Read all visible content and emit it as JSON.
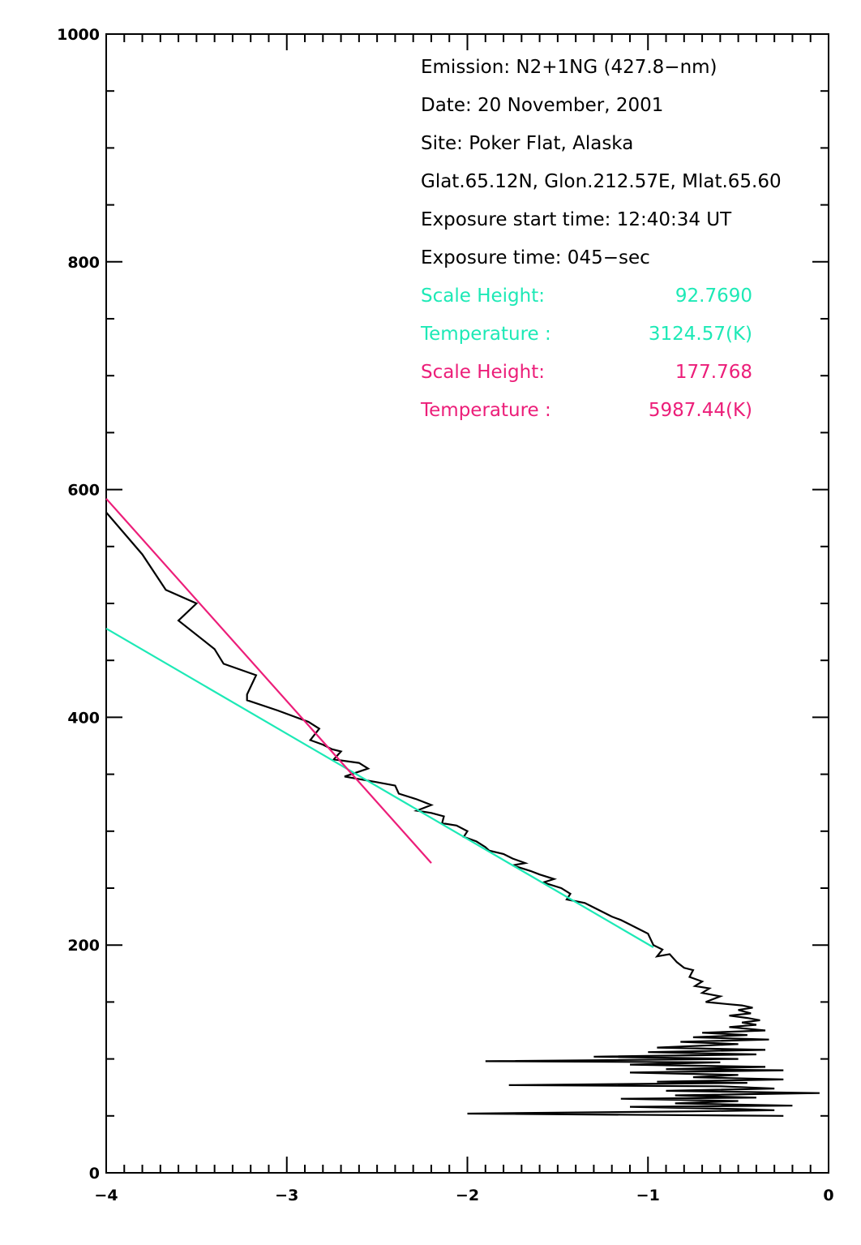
{
  "chart_data": {
    "type": "line",
    "xlim": [
      -4,
      0
    ],
    "ylim": [
      0,
      1000
    ],
    "x_ticks": [
      -4,
      -3,
      -2,
      -1,
      0
    ],
    "x_tick_labels": [
      "−4",
      "−3",
      "−2",
      "−1",
      "0"
    ],
    "y_ticks": [
      0,
      200,
      400,
      600,
      800,
      1000
    ],
    "y_tick_labels": [
      "0",
      "200",
      "400",
      "600",
      "800",
      "1000"
    ],
    "grid": false,
    "annotations": [
      {
        "text": "Emission: N2+1NG (427.8−nm)",
        "color": "#000000"
      },
      {
        "text": "Date: 20 November, 2001",
        "color": "#000000"
      },
      {
        "text": "Site: Poker Flat, Alaska",
        "color": "#000000"
      },
      {
        "text": "Glat.65.12N, Glon.212.57E, Mlat.65.60",
        "color": "#000000"
      },
      {
        "text": "Exposure start time: 12:40:34 UT",
        "color": "#000000"
      },
      {
        "text": "Exposure time: 045−sec",
        "color": "#000000"
      },
      {
        "label": "Scale Height:",
        "value": "92.7690",
        "color": "#1de9b6"
      },
      {
        "label": "Temperature :",
        "value": "3124.57(K)",
        "color": "#1de9b6"
      },
      {
        "label": "Scale Height:",
        "value": "177.768",
        "color": "#ec1e79"
      },
      {
        "label": "Temperature :",
        "value": "5987.44(K)",
        "color": "#ec1e79"
      }
    ],
    "series": [
      {
        "color": "#000000",
        "points": [
          [
            -4.0,
            580
          ],
          [
            -3.8,
            543
          ],
          [
            -3.67,
            512
          ],
          [
            -3.5,
            500
          ],
          [
            -3.6,
            485
          ],
          [
            -3.4,
            460
          ],
          [
            -3.35,
            447
          ],
          [
            -3.17,
            437
          ],
          [
            -3.22,
            420
          ],
          [
            -3.22,
            415
          ],
          [
            -3.05,
            406
          ],
          [
            -2.88,
            396
          ],
          [
            -2.82,
            390
          ],
          [
            -2.87,
            380
          ],
          [
            -2.8,
            376
          ],
          [
            -2.75,
            372
          ],
          [
            -2.7,
            370
          ],
          [
            -2.74,
            363
          ],
          [
            -2.6,
            360
          ],
          [
            -2.55,
            355
          ],
          [
            -2.68,
            348
          ],
          [
            -2.5,
            343
          ],
          [
            -2.4,
            340
          ],
          [
            -2.38,
            333
          ],
          [
            -2.28,
            328
          ],
          [
            -2.2,
            323
          ],
          [
            -2.28,
            318
          ],
          [
            -2.2,
            316
          ],
          [
            -2.13,
            313
          ],
          [
            -2.14,
            307
          ],
          [
            -2.06,
            305
          ],
          [
            -2.0,
            300
          ],
          [
            -2.02,
            295
          ],
          [
            -1.95,
            291
          ],
          [
            -1.9,
            286
          ],
          [
            -1.88,
            283
          ],
          [
            -1.8,
            280
          ],
          [
            -1.75,
            276
          ],
          [
            -1.68,
            272
          ],
          [
            -1.75,
            270
          ],
          [
            -1.65,
            265
          ],
          [
            -1.6,
            262
          ],
          [
            -1.52,
            258
          ],
          [
            -1.58,
            255
          ],
          [
            -1.48,
            250
          ],
          [
            -1.43,
            245
          ],
          [
            -1.45,
            240
          ],
          [
            -1.35,
            237
          ],
          [
            -1.3,
            233
          ],
          [
            -1.25,
            229
          ],
          [
            -1.2,
            225
          ],
          [
            -1.15,
            222
          ],
          [
            -1.1,
            218
          ],
          [
            -1.05,
            214
          ],
          [
            -1.0,
            210
          ],
          [
            -0.97,
            200
          ],
          [
            -0.92,
            196
          ],
          [
            -0.95,
            190
          ],
          [
            -0.88,
            192
          ],
          [
            -0.84,
            185
          ],
          [
            -0.8,
            180
          ],
          [
            -0.75,
            178
          ],
          [
            -0.77,
            172
          ],
          [
            -0.7,
            168
          ],
          [
            -0.74,
            164
          ],
          [
            -0.66,
            162
          ],
          [
            -0.7,
            158
          ],
          [
            -0.6,
            155
          ],
          [
            -0.68,
            150
          ],
          [
            -0.55,
            148
          ],
          [
            -0.48,
            147
          ],
          [
            -0.42,
            145
          ],
          [
            -0.5,
            143
          ],
          [
            -0.43,
            140
          ],
          [
            -0.55,
            138
          ],
          [
            -0.45,
            136
          ],
          [
            -0.38,
            134
          ],
          [
            -0.48,
            132
          ],
          [
            -0.4,
            130
          ],
          [
            -0.55,
            128
          ],
          [
            -0.35,
            125
          ],
          [
            -0.7,
            123
          ],
          [
            -0.45,
            121
          ],
          [
            -0.75,
            119
          ],
          [
            -0.33,
            117
          ],
          [
            -0.82,
            115
          ],
          [
            -0.5,
            113
          ],
          [
            -0.95,
            110
          ],
          [
            -0.35,
            108
          ],
          [
            -1.0,
            106
          ],
          [
            -0.4,
            104
          ],
          [
            -1.3,
            102
          ],
          [
            -0.5,
            100
          ],
          [
            -1.9,
            98
          ],
          [
            -0.6,
            97
          ],
          [
            -1.1,
            95
          ],
          [
            -0.35,
            93
          ],
          [
            -0.9,
            91
          ],
          [
            -0.25,
            90
          ],
          [
            -1.1,
            88
          ],
          [
            -0.5,
            86
          ],
          [
            -0.75,
            84
          ],
          [
            -0.25,
            82
          ],
          [
            -0.95,
            80
          ],
          [
            -0.45,
            79
          ],
          [
            -1.77,
            77
          ],
          [
            -0.6,
            76
          ],
          [
            -0.3,
            74
          ],
          [
            -0.9,
            72
          ],
          [
            -0.05,
            70
          ],
          [
            -0.85,
            68
          ],
          [
            -0.4,
            66
          ],
          [
            -1.15,
            65
          ],
          [
            -0.5,
            63
          ],
          [
            -0.85,
            61
          ],
          [
            -0.2,
            59
          ],
          [
            -1.1,
            58
          ],
          [
            -0.5,
            56
          ],
          [
            -0.3,
            55
          ],
          [
            -0.75,
            54
          ],
          [
            -2.0,
            52
          ],
          [
            -0.25,
            50
          ]
        ]
      },
      {
        "color": "#1de9b6",
        "points": [
          [
            -4.0,
            478
          ],
          [
            -0.97,
            198
          ]
        ]
      },
      {
        "color": "#ec1e79",
        "points": [
          [
            -4.0,
            592
          ],
          [
            -2.2,
            272
          ]
        ]
      }
    ]
  }
}
